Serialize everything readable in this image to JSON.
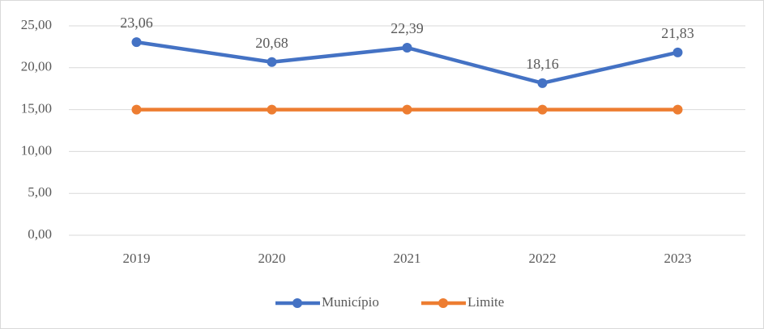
{
  "chart_data": {
    "type": "line",
    "categories": [
      "2019",
      "2020",
      "2021",
      "2022",
      "2023"
    ],
    "series": [
      {
        "name": "Município",
        "color": "#4472c4",
        "values": [
          23.06,
          20.68,
          22.39,
          18.16,
          21.83
        ],
        "value_labels": [
          "23,06",
          "20,68",
          "22,39",
          "18,16",
          "21,83"
        ]
      },
      {
        "name": "Limite",
        "color": "#ed7d31",
        "values": [
          15,
          15,
          15,
          15,
          15
        ]
      }
    ],
    "ylim": [
      0,
      25
    ],
    "yticks": [
      {
        "value": 0,
        "label": "0,00"
      },
      {
        "value": 5,
        "label": "5,00"
      },
      {
        "value": 10,
        "label": "10,00"
      },
      {
        "value": 15,
        "label": "15,00"
      },
      {
        "value": 20,
        "label": "20,00"
      },
      {
        "value": 25,
        "label": "25,00"
      }
    ],
    "grid": true,
    "legend": "bottom"
  }
}
